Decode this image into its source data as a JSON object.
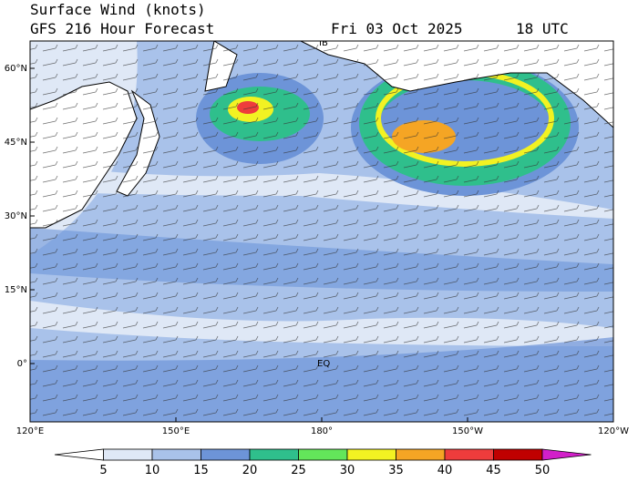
{
  "header": {
    "title": "Surface Wind (knots)",
    "subtitle": "GFS 216 Hour Forecast",
    "date": "Fri 03 Oct 2025",
    "time": "18 UTC"
  },
  "map": {
    "lat_labels": [
      "60°N",
      "45°N",
      "30°N",
      "15°N",
      "0°"
    ],
    "lon_labels": [
      "120°E",
      "150°E",
      "180°",
      "150°W",
      "120°W"
    ],
    "annotations": [
      "IB",
      "EQ"
    ]
  },
  "colorbar": {
    "ticks": [
      5,
      10,
      15,
      20,
      25,
      30,
      35,
      40,
      45,
      50
    ],
    "colors": [
      "#ffffff",
      "#dfe8f6",
      "#a9c2ea",
      "#6d94d8",
      "#2fbf8c",
      "#63e65a",
      "#f2f222",
      "#f5a524",
      "#ee3c3c",
      "#c00000",
      "#d21fc9"
    ]
  }
}
